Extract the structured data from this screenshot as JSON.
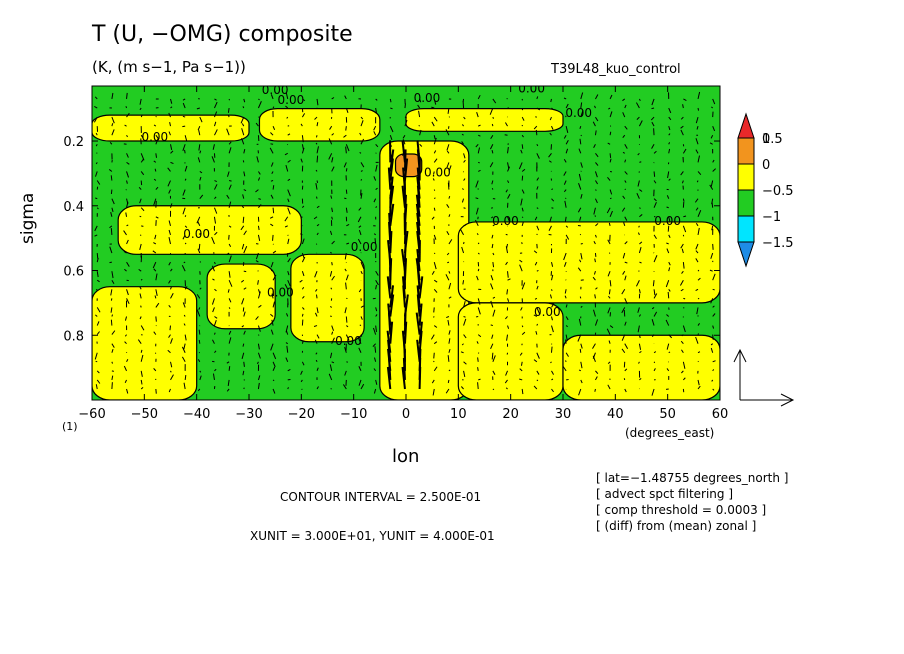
{
  "header": {
    "title": "T (U, −OMG) composite",
    "units": "(K, (m s−1, Pa s−1))",
    "run_name": "T39L48_kuo_control"
  },
  "footer": {
    "contour_interval": "CONTOUR INTERVAL = 2.500E-01",
    "vector_units": "XUNIT = 3.000E+01, YUNIT = 4.000E-01",
    "notes": [
      "[ lat=−1.48755 degrees_north ]",
      "[ advect spct filtering ]",
      "[ comp threshold = 0.0003 ]",
      "[ (diff) from (mean) zonal ]"
    ]
  },
  "colors": {
    "band_gt_1": "#e8282a",
    "band_0p5_1": "#f2941e",
    "band_0_0p5": "#ffff00",
    "band_m0p5_0": "#22cc22",
    "band_m1_m0p5": "#00e5ff",
    "band_lt_m1": "#1e8ce6"
  },
  "chart_data": {
    "type": "heatmap",
    "xlabel": "lon",
    "x_units": "(degrees_east)",
    "ylabel": "sigma",
    "xlim": [
      -60,
      60
    ],
    "ylim": [
      1.0,
      0.03
    ],
    "x_ticks": [
      -60,
      -50,
      -40,
      -30,
      -20,
      -10,
      0,
      10,
      20,
      30,
      40,
      50,
      60
    ],
    "y_ticks": [
      0.2,
      0.4,
      0.6,
      0.8
    ],
    "y_tick_extra_label": "(1)",
    "contour_label": "0.00",
    "contour_label_positions": [
      {
        "lon": -52,
        "sigma": 0.03
      },
      {
        "lon": 7,
        "sigma": 0.03
      },
      {
        "lon": -25,
        "sigma": 0.055
      },
      {
        "lon": -22,
        "sigma": 0.085
      },
      {
        "lon": 4,
        "sigma": 0.08
      },
      {
        "lon": 24,
        "sigma": 0.05
      },
      {
        "lon": 34,
        "sigma": 0.03
      },
      {
        "lon": 33,
        "sigma": 0.125
      },
      {
        "lon": -48,
        "sigma": 0.2
      },
      {
        "lon": -40,
        "sigma": 0.5
      },
      {
        "lon": 6,
        "sigma": 0.31
      },
      {
        "lon": 19,
        "sigma": 0.46
      },
      {
        "lon": 50,
        "sigma": 0.46
      },
      {
        "lon": -8,
        "sigma": 0.54
      },
      {
        "lon": -24,
        "sigma": 0.68
      },
      {
        "lon": 27,
        "sigma": 0.74
      },
      {
        "lon": -11,
        "sigma": 0.83
      }
    ],
    "legend": {
      "type": "colorbar",
      "placement": "right",
      "tick_labels": [
        "1",
        "0.5",
        "0",
        "−0.5",
        "−1",
        "−1.5"
      ],
      "bounds": [
        1,
        0.5,
        0,
        -0.5,
        -1,
        -1.5
      ]
    },
    "regions": [
      {
        "value": "-0.5 to 0",
        "lon": [
          -60,
          60
        ],
        "sigma": [
          0.03,
          1.0
        ]
      },
      {
        "value": "0 to 0.5",
        "lon": [
          -60,
          -30
        ],
        "sigma": [
          0.12,
          0.2
        ]
      },
      {
        "value": "0 to 0.5",
        "lon": [
          -28,
          -5
        ],
        "sigma": [
          0.1,
          0.2
        ]
      },
      {
        "value": "0 to 0.5",
        "lon": [
          0,
          30
        ],
        "sigma": [
          0.1,
          0.17
        ]
      },
      {
        "value": "0 to 0.5",
        "lon": [
          -55,
          -20
        ],
        "sigma": [
          0.4,
          0.55
        ]
      },
      {
        "value": "0 to 0.5",
        "lon": [
          -60,
          -40
        ],
        "sigma": [
          0.65,
          1.0
        ]
      },
      {
        "value": "0 to 0.5",
        "lon": [
          -38,
          -25
        ],
        "sigma": [
          0.58,
          0.78
        ]
      },
      {
        "value": "0 to 0.5",
        "lon": [
          -22,
          -8
        ],
        "sigma": [
          0.55,
          0.82
        ]
      },
      {
        "value": "0 to 0.5",
        "lon": [
          -5,
          12
        ],
        "sigma": [
          0.2,
          1.0
        ]
      },
      {
        "value": "0 to 0.5",
        "lon": [
          10,
          60
        ],
        "sigma": [
          0.45,
          0.7
        ]
      },
      {
        "value": "0 to 0.5",
        "lon": [
          10,
          30
        ],
        "sigma": [
          0.7,
          1.0
        ]
      },
      {
        "value": "0 to 0.5",
        "lon": [
          30,
          60
        ],
        "sigma": [
          0.8,
          1.0
        ]
      },
      {
        "value": "0.5 to 1",
        "lon": [
          -2,
          3
        ],
        "sigma": [
          0.24,
          0.31
        ]
      }
    ],
    "vectors": {
      "x_unit": 30,
      "y_unit": 0.4,
      "strong_updrafts_lon": [
        -3,
        0,
        3
      ],
      "strong_updrafts_sigma": [
        0.25,
        0.9
      ]
    }
  }
}
